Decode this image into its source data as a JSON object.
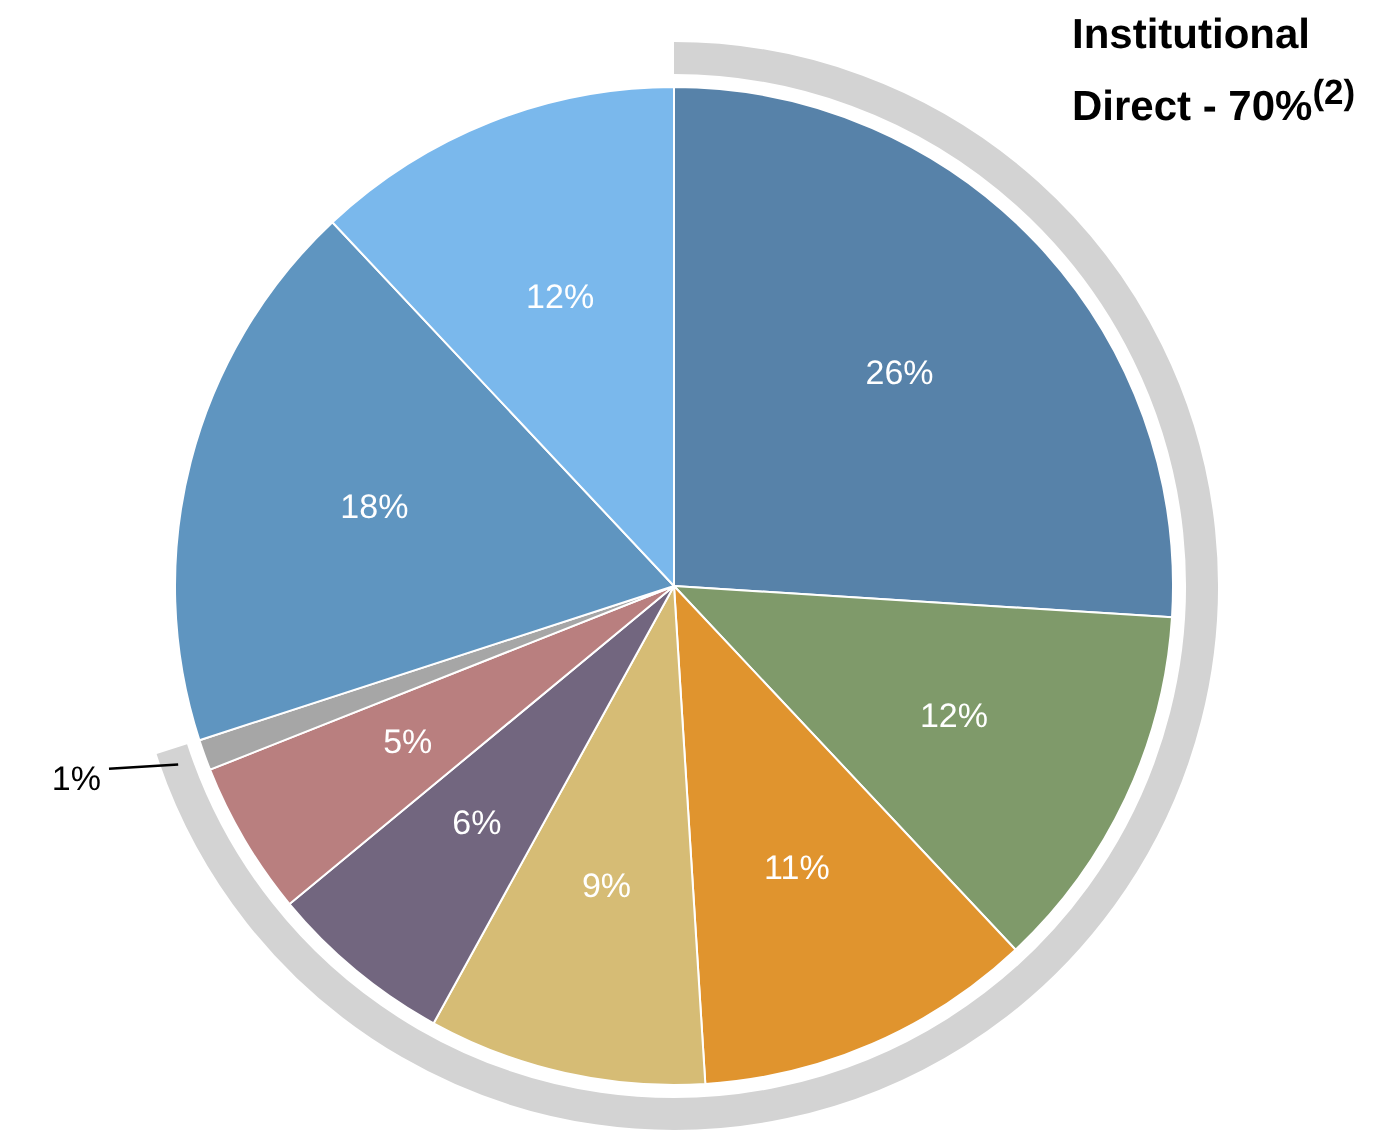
{
  "chart_data": {
    "type": "pie",
    "categories": [
      null,
      null,
      null,
      null,
      null,
      null,
      null,
      null,
      null
    ],
    "values": [
      26,
      12,
      11,
      9,
      6,
      5,
      1,
      18,
      12
    ],
    "colors": [
      "#5782a9",
      "#7f9a6a",
      "#e0942e",
      "#d6bc75",
      "#72667f",
      "#b97f7f",
      "#a6a6a6",
      "#5f95c0",
      "#7ab8ec"
    ],
    "value_labels": [
      "26%",
      "12%",
      "11%",
      "9%",
      "6%",
      "5%",
      "1%",
      "18%",
      "12%"
    ],
    "annotations": [
      "Institutional Direct - 70%$^{(2)}$"
    ],
    "legend": false
  }
}
